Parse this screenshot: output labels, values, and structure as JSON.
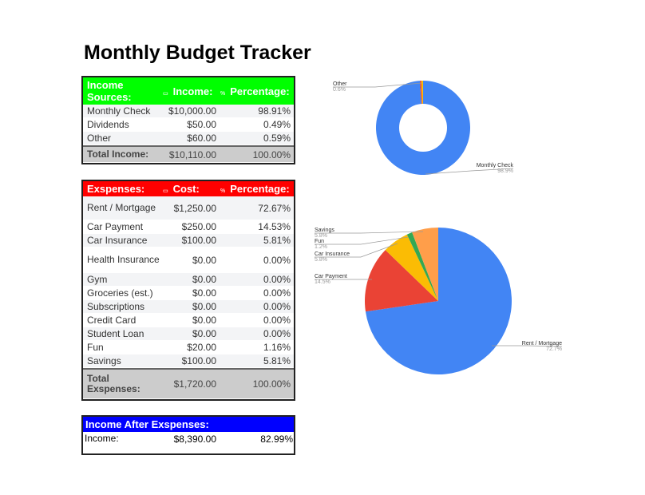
{
  "title": "Monthly Budget Tracker",
  "income": {
    "header": {
      "label": "Income Sources:",
      "amount": "Income:",
      "pct": "Percentage:",
      "amount_icon": "money-icon",
      "pct_icon": "percent-icon"
    },
    "rows": [
      {
        "label": "Monthly Check",
        "amount": "$10,000.00",
        "pct": "98.91%"
      },
      {
        "label": "Dividends",
        "amount": "$50.00",
        "pct": "0.49%"
      },
      {
        "label": "Other",
        "amount": "$60.00",
        "pct": "0.59%"
      }
    ],
    "total": {
      "label": "Total Income:",
      "amount": "$10,110.00",
      "pct": "100.00%"
    }
  },
  "expenses": {
    "header": {
      "label": "Exspenses:",
      "amount": "Cost:",
      "pct": "Percentage:"
    },
    "rows": [
      {
        "label": "Rent / Mortgage",
        "amount": "$1,250.00",
        "pct": "72.67%"
      },
      {
        "label": "Car Payment",
        "amount": "$250.00",
        "pct": "14.53%"
      },
      {
        "label": "Car Insurance",
        "amount": "$100.00",
        "pct": "5.81%"
      },
      {
        "label": "Health Insurance",
        "amount": "$0.00",
        "pct": "0.00%"
      },
      {
        "label": "Gym",
        "amount": "$0.00",
        "pct": "0.00%"
      },
      {
        "label": "Groceries (est.)",
        "amount": "$0.00",
        "pct": "0.00%"
      },
      {
        "label": "Subscriptions",
        "amount": "$0.00",
        "pct": "0.00%"
      },
      {
        "label": "Credit Card",
        "amount": "$0.00",
        "pct": "0.00%"
      },
      {
        "label": "Student Loan",
        "amount": "$0.00",
        "pct": "0.00%"
      },
      {
        "label": "Fun",
        "amount": "$20.00",
        "pct": "1.16%"
      },
      {
        "label": "Savings",
        "amount": "$100.00",
        "pct": "5.81%"
      }
    ],
    "total": {
      "label": "Total Exspenses:",
      "amount": "$1,720.00",
      "pct": "100.00%"
    }
  },
  "after": {
    "header": "Income After Exspenses:",
    "label": "Income:",
    "amount": "$8,390.00",
    "pct": "82.99%"
  },
  "colors": {
    "income_header": "#00ff00",
    "expense_header": "#ff0000",
    "after_header": "#0000ff"
  },
  "chart_data": [
    {
      "type": "pie",
      "style": "donut",
      "slices": [
        {
          "label": "Monthly Check",
          "value": 98.9,
          "shown": "98.9%",
          "color": "#4285f4",
          "labeled": true
        },
        {
          "label": "Dividends",
          "value": 0.5,
          "color": "#ea4335",
          "labeled": false
        },
        {
          "label": "Other",
          "value": 0.6,
          "shown": "0.6%",
          "color": "#fbbc04",
          "labeled": true
        }
      ]
    },
    {
      "type": "pie",
      "slices": [
        {
          "label": "Rent / Mortgage",
          "value": 72.7,
          "shown": "72.7%",
          "color": "#4285f4"
        },
        {
          "label": "Car Payment",
          "value": 14.5,
          "shown": "14.5%",
          "color": "#ea4335"
        },
        {
          "label": "Car Insurance",
          "value": 5.8,
          "shown": "5.8%",
          "color": "#fbbc04"
        },
        {
          "label": "Fun",
          "value": 1.2,
          "shown": "1.2%",
          "color": "#34a853"
        },
        {
          "label": "Savings",
          "value": 5.8,
          "shown": "5.8%",
          "color": "#ff9e4a"
        }
      ]
    }
  ]
}
